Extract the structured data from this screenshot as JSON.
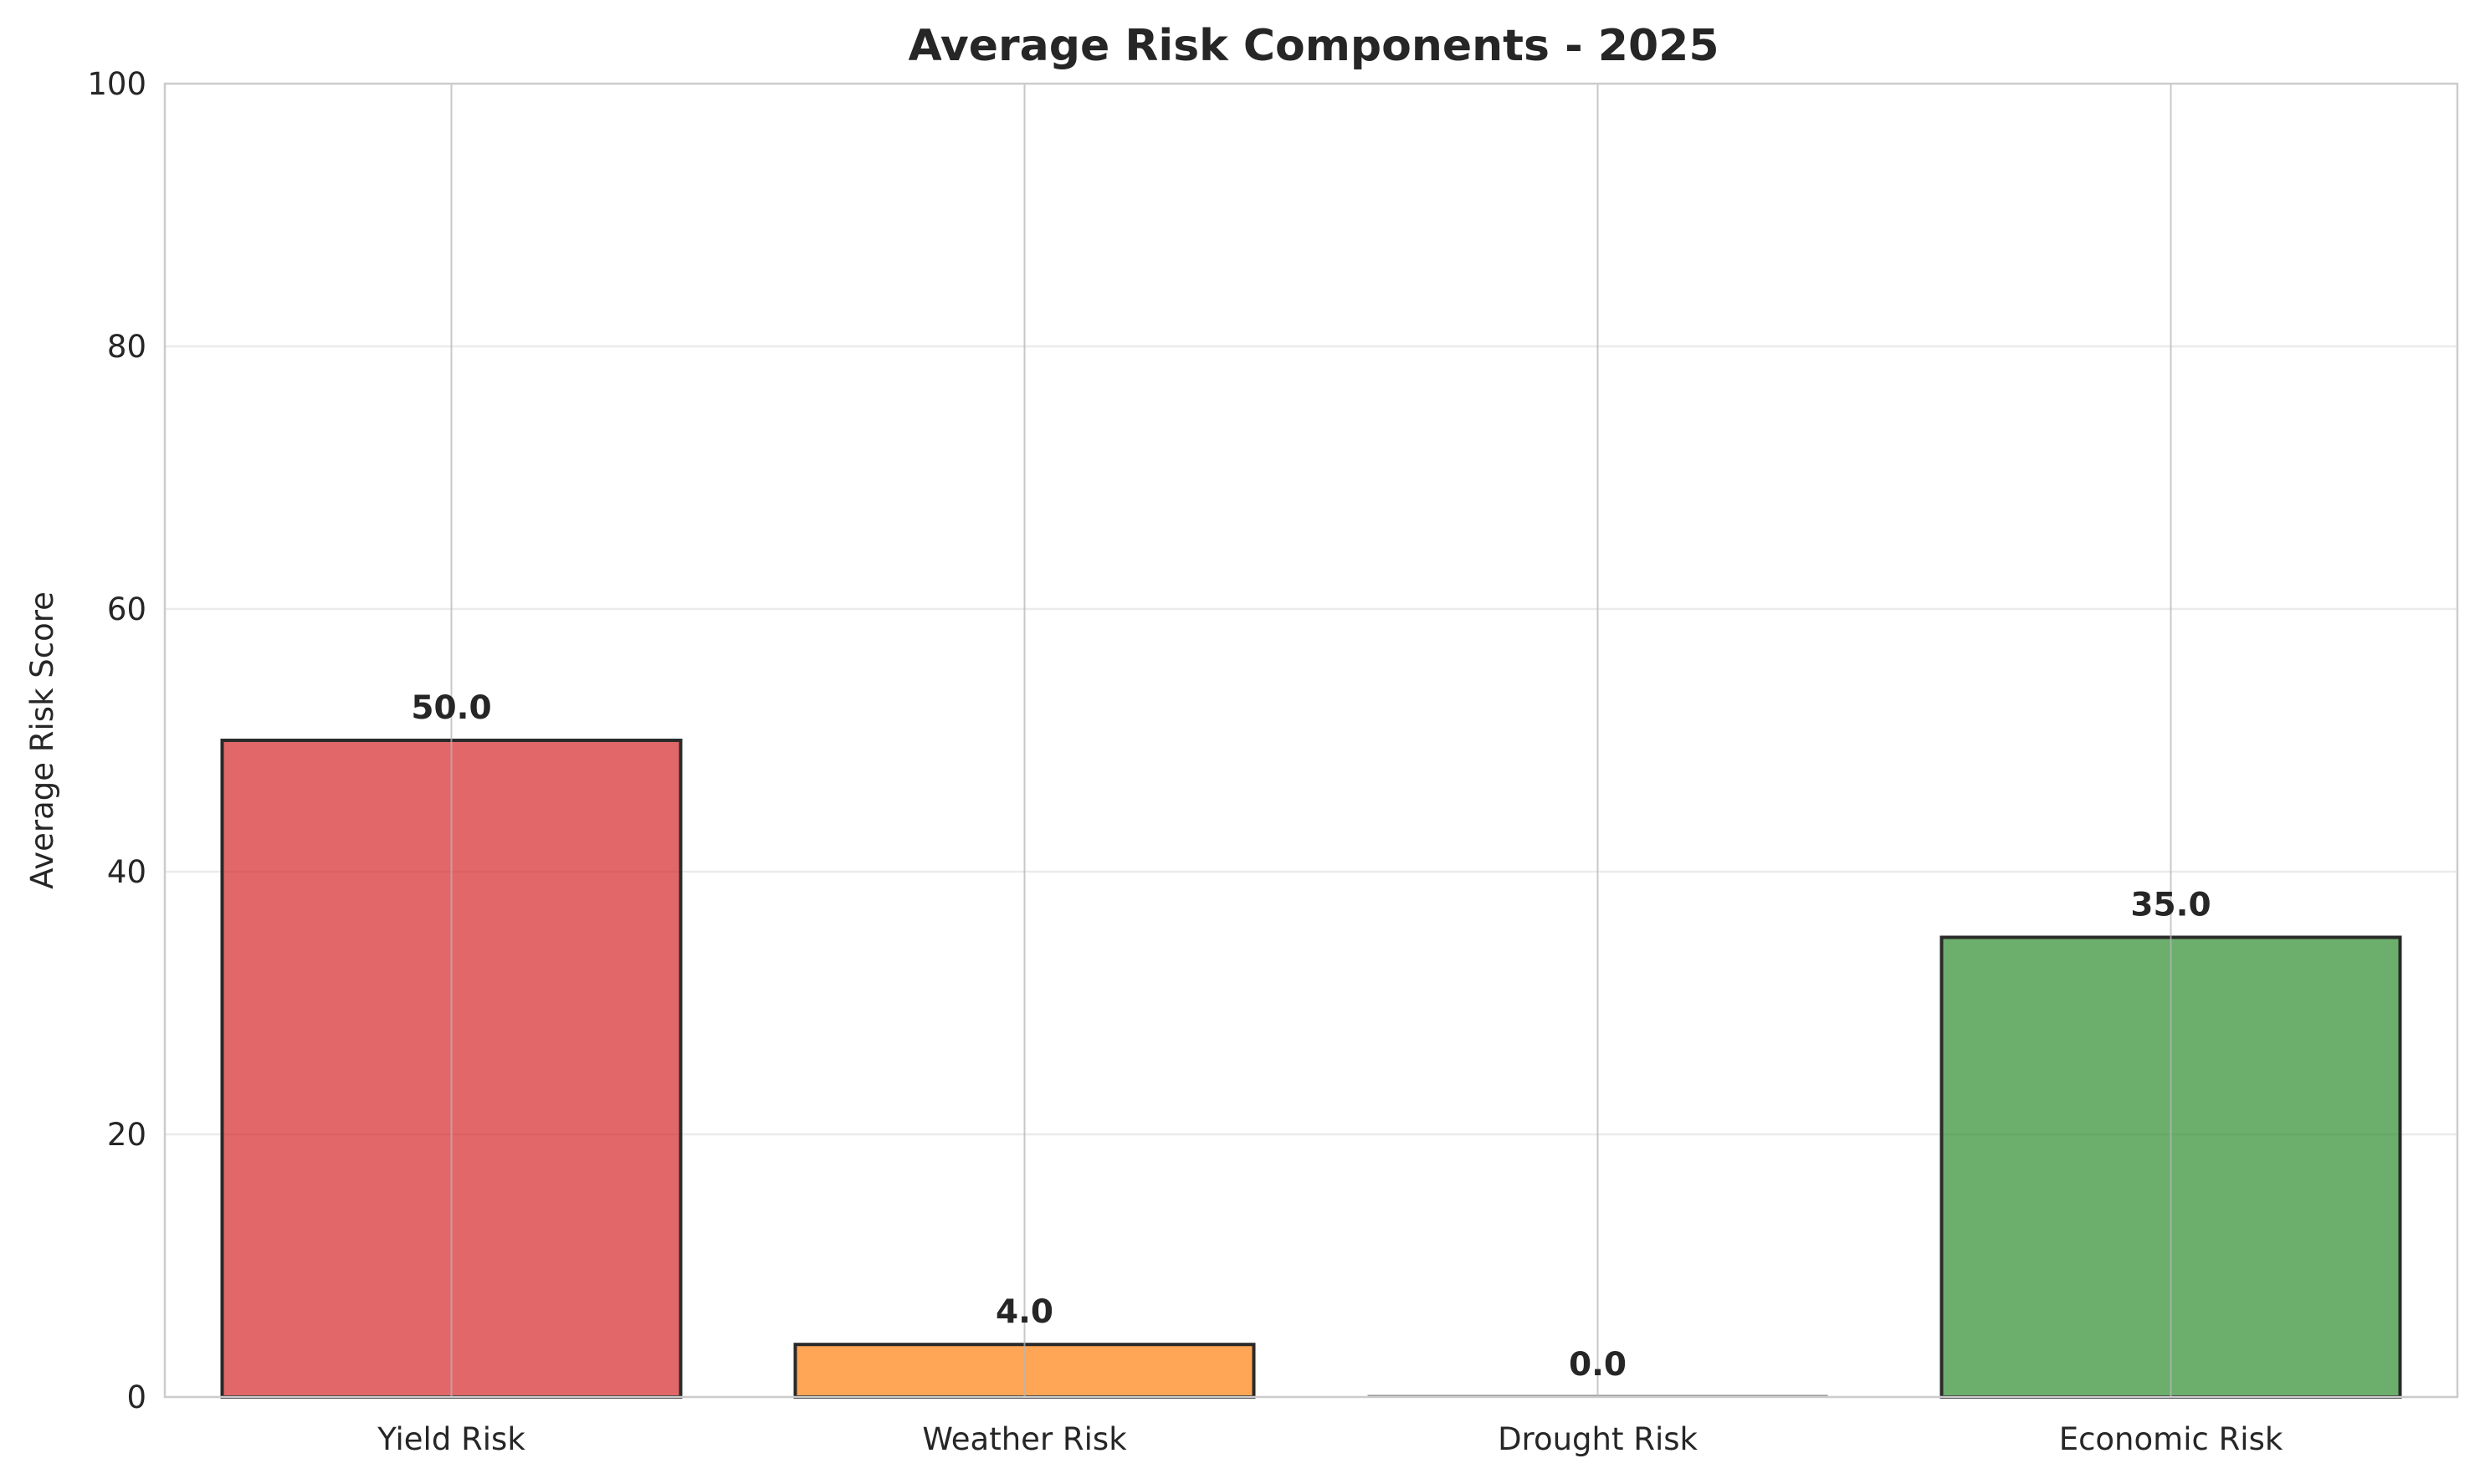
{
  "chart_data": {
    "type": "bar",
    "title": "Average Risk Components - 2025",
    "xlabel": "",
    "ylabel": "Average Risk Score",
    "categories": [
      "Yield Risk",
      "Weather Risk",
      "Drought Risk",
      "Economic Risk"
    ],
    "values": [
      50.0,
      4.0,
      0.0,
      35.0
    ],
    "value_labels": [
      "50.0",
      "4.0",
      "0.0",
      "35.0"
    ],
    "colors": [
      "#d62728",
      "#ff7f0e",
      "#7f7f7f",
      "#2e8b2e"
    ],
    "ylim": [
      0,
      100
    ],
    "yticks": [
      0,
      20,
      40,
      60,
      80,
      100
    ],
    "grid": true,
    "legend": "none"
  }
}
